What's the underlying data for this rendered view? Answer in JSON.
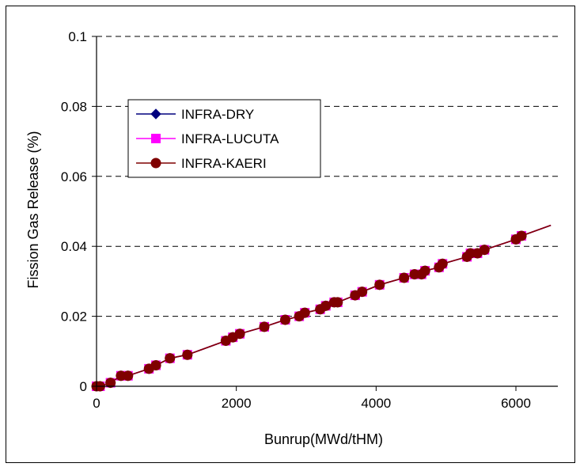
{
  "chart_data": {
    "type": "line",
    "title": "",
    "xlabel": "Bunrup(MWd/tHM)",
    "ylabel": "Fission Gas Release (%)",
    "xlim": [
      0,
      6500
    ],
    "ylim": [
      0,
      0.1
    ],
    "x_ticks": [
      "0",
      "2000",
      "4000",
      "6000"
    ],
    "y_ticks": [
      "0",
      "0.02",
      "0.04",
      "0.06",
      "0.08",
      "0.1"
    ],
    "grid": "horizontal-dashed",
    "legend_position": "upper-left",
    "colors": {
      "INFRA-DRY": "#00007f",
      "INFRA-LUCUTA": "#ff00ff",
      "INFRA-KAERI": "#7f0000"
    },
    "series": [
      {
        "name": "INFRA-DRY",
        "marker": "diamond",
        "x": [
          0,
          50,
          200,
          350,
          450,
          750,
          850,
          1050,
          1300,
          1850,
          1950,
          2050,
          2400,
          2700,
          2900,
          2980,
          3200,
          3280,
          3400,
          3450,
          3700,
          3800,
          4050,
          4400,
          4550,
          4650,
          4700,
          4900,
          4950,
          5300,
          5350,
          5450,
          5550,
          6000,
          6080,
          6500
        ],
        "y": [
          0,
          0,
          0.001,
          0.003,
          0.003,
          0.005,
          0.006,
          0.008,
          0.009,
          0.013,
          0.014,
          0.015,
          0.017,
          0.019,
          0.02,
          0.021,
          0.022,
          0.023,
          0.024,
          0.024,
          0.026,
          0.027,
          0.029,
          0.031,
          0.032,
          0.032,
          0.033,
          0.034,
          0.035,
          0.037,
          0.038,
          0.038,
          0.039,
          0.042,
          0.043,
          0.046
        ]
      },
      {
        "name": "INFRA-LUCUTA",
        "marker": "square",
        "x": [
          0,
          50,
          200,
          350,
          450,
          750,
          850,
          1050,
          1300,
          1850,
          1950,
          2050,
          2400,
          2700,
          2900,
          2980,
          3200,
          3280,
          3400,
          3450,
          3700,
          3800,
          4050,
          4400,
          4550,
          4650,
          4700,
          4900,
          4950,
          5300,
          5350,
          5450,
          5550,
          6000,
          6080,
          6500
        ],
        "y": [
          0,
          0,
          0.001,
          0.003,
          0.003,
          0.005,
          0.006,
          0.008,
          0.009,
          0.013,
          0.014,
          0.015,
          0.017,
          0.019,
          0.02,
          0.021,
          0.022,
          0.023,
          0.024,
          0.024,
          0.026,
          0.027,
          0.029,
          0.031,
          0.032,
          0.032,
          0.033,
          0.034,
          0.035,
          0.037,
          0.038,
          0.038,
          0.039,
          0.042,
          0.043,
          0.046
        ]
      },
      {
        "name": "INFRA-KAERI",
        "marker": "circle",
        "x": [
          0,
          50,
          200,
          350,
          450,
          750,
          850,
          1050,
          1300,
          1850,
          1950,
          2050,
          2400,
          2700,
          2900,
          2980,
          3200,
          3280,
          3400,
          3450,
          3700,
          3800,
          4050,
          4400,
          4550,
          4650,
          4700,
          4900,
          4950,
          5300,
          5350,
          5450,
          5550,
          6000,
          6080,
          6500
        ],
        "y": [
          0,
          0,
          0.001,
          0.003,
          0.003,
          0.005,
          0.006,
          0.008,
          0.009,
          0.013,
          0.014,
          0.015,
          0.017,
          0.019,
          0.02,
          0.021,
          0.022,
          0.023,
          0.024,
          0.024,
          0.026,
          0.027,
          0.029,
          0.031,
          0.032,
          0.032,
          0.033,
          0.034,
          0.035,
          0.037,
          0.038,
          0.038,
          0.039,
          0.042,
          0.043,
          0.046
        ]
      }
    ]
  }
}
